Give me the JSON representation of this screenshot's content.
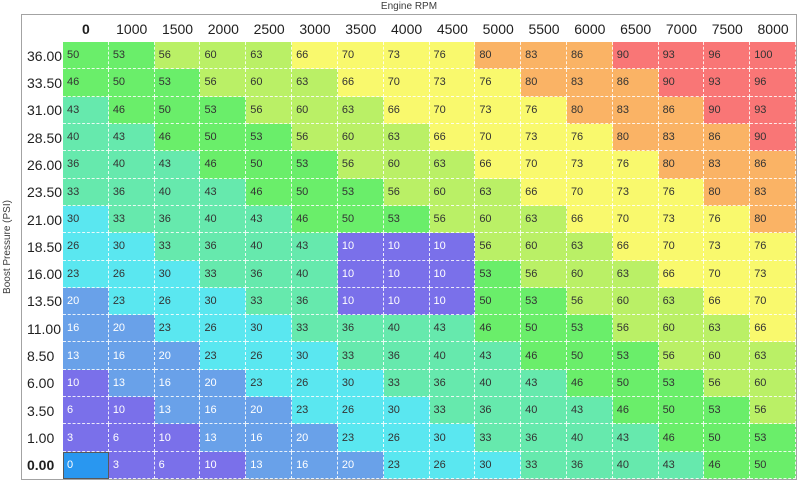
{
  "title": "Engine RPM",
  "y_axis_label": "Boost Pressure (PSI)",
  "table": {
    "column_headers": [
      "0",
      "1000",
      "1500",
      "2000",
      "2500",
      "3000",
      "3500",
      "4000",
      "4500",
      "5000",
      "5500",
      "6000",
      "6500",
      "7000",
      "7500",
      "8000"
    ],
    "bold_column_header": "0",
    "row_headers": [
      "36.00",
      "33.50",
      "31.00",
      "28.50",
      "26.00",
      "23.50",
      "21.00",
      "18.50",
      "16.00",
      "13.50",
      "11.00",
      "8.50",
      "6.00",
      "3.50",
      "1.00",
      "0.00"
    ],
    "bold_row_header": "0.00",
    "rows": [
      [
        50,
        53,
        56,
        60,
        63,
        66,
        70,
        73,
        76,
        80,
        83,
        86,
        90,
        93,
        96,
        100
      ],
      [
        46,
        50,
        53,
        56,
        60,
        63,
        66,
        70,
        73,
        76,
        80,
        83,
        86,
        90,
        93,
        96
      ],
      [
        43,
        46,
        50,
        53,
        56,
        60,
        63,
        66,
        70,
        73,
        76,
        80,
        83,
        86,
        90,
        93
      ],
      [
        40,
        43,
        46,
        50,
        53,
        56,
        60,
        63,
        66,
        70,
        73,
        76,
        80,
        83,
        86,
        90
      ],
      [
        36,
        40,
        43,
        46,
        50,
        53,
        56,
        60,
        63,
        66,
        70,
        73,
        76,
        80,
        83,
        86
      ],
      [
        33,
        36,
        40,
        43,
        46,
        50,
        53,
        56,
        60,
        63,
        66,
        70,
        73,
        76,
        80,
        83
      ],
      [
        30,
        33,
        36,
        40,
        43,
        46,
        50,
        53,
        56,
        60,
        63,
        66,
        70,
        73,
        76,
        80
      ],
      [
        26,
        30,
        33,
        36,
        40,
        43,
        10,
        10,
        10,
        56,
        60,
        63,
        66,
        70,
        73,
        76
      ],
      [
        23,
        26,
        30,
        33,
        36,
        40,
        10,
        10,
        10,
        53,
        56,
        60,
        63,
        66,
        70,
        73
      ],
      [
        20,
        23,
        26,
        30,
        33,
        36,
        10,
        10,
        10,
        50,
        53,
        56,
        60,
        63,
        66,
        70
      ],
      [
        16,
        20,
        23,
        26,
        30,
        33,
        36,
        40,
        43,
        46,
        50,
        53,
        56,
        60,
        63,
        66
      ],
      [
        13,
        16,
        20,
        23,
        26,
        30,
        33,
        36,
        40,
        43,
        46,
        50,
        53,
        56,
        60,
        63
      ],
      [
        10,
        13,
        16,
        20,
        23,
        26,
        30,
        33,
        36,
        40,
        43,
        46,
        50,
        53,
        56,
        60
      ],
      [
        6,
        10,
        13,
        16,
        20,
        23,
        26,
        30,
        33,
        36,
        40,
        43,
        46,
        50,
        53,
        56
      ],
      [
        3,
        6,
        10,
        13,
        16,
        20,
        23,
        26,
        30,
        33,
        36,
        40,
        43,
        46,
        50,
        53
      ],
      [
        0,
        3,
        6,
        10,
        13,
        16,
        20,
        23,
        26,
        30,
        33,
        36,
        40,
        43,
        46,
        50
      ]
    ]
  },
  "selection": {
    "row_label": "0.00",
    "column_label": "0",
    "value": 0,
    "background": "#2997f0",
    "text_color": "#ffffff",
    "outline_color": "#58595b"
  },
  "color_scale": {
    "bands": [
      {
        "max": 10,
        "background": "#7a70ea",
        "text_color": "#ffffff"
      },
      {
        "max": 20,
        "background": "#69a1e9",
        "text_color": "#ffffff"
      },
      {
        "max": 30,
        "background": "#5ae7f0",
        "text_color": "#333333"
      },
      {
        "max": 43,
        "background": "#66e9ad",
        "text_color": "#333333"
      },
      {
        "max": 53,
        "background": "#6aee6a",
        "text_color": "#333333"
      },
      {
        "max": 63,
        "background": "#baf066",
        "text_color": "#333333"
      },
      {
        "max": 76,
        "background": "#f9f96d",
        "text_color": "#333333"
      },
      {
        "max": 86,
        "background": "#fab365",
        "text_color": "#333333"
      },
      {
        "max": 100,
        "background": "#f97676",
        "text_color": "#333333"
      }
    ]
  }
}
